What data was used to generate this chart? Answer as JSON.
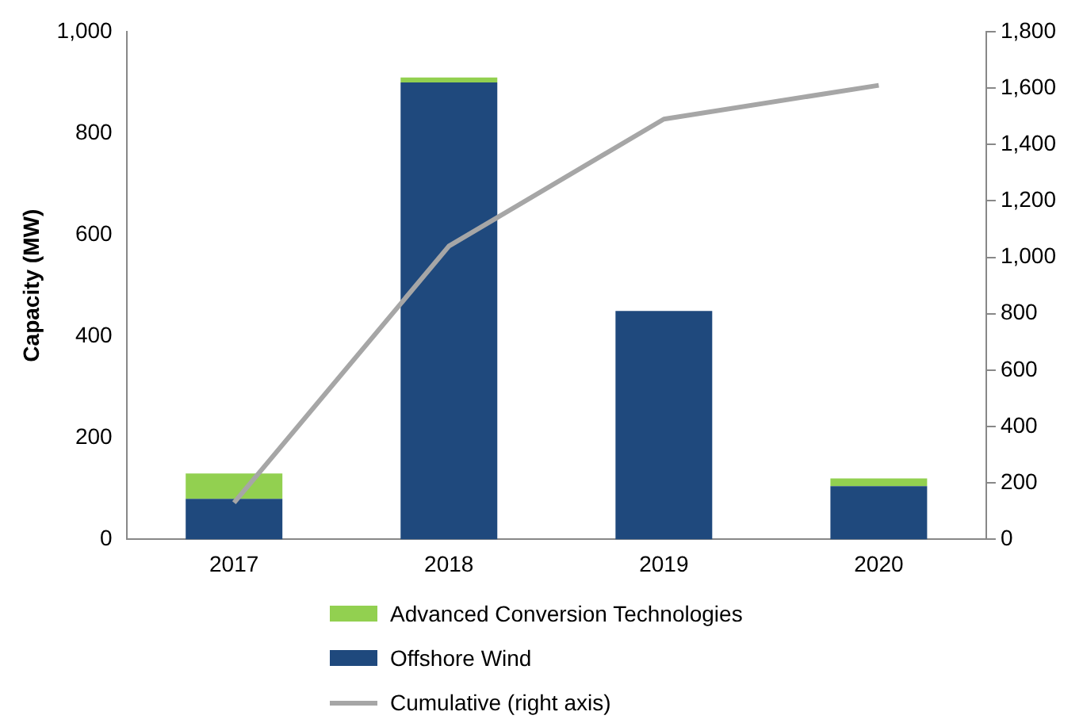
{
  "chart_data": {
    "type": "bar",
    "ylabel": "Capacity (MW)",
    "categories": [
      "2017",
      "2018",
      "2019",
      "2020"
    ],
    "stacked": true,
    "grid": false,
    "legend": "bottom",
    "ylim": [
      0,
      1000
    ],
    "yticks": [
      0,
      {
        "value": 200,
        "label": "200"
      },
      {
        "value": 400,
        "label": "400"
      },
      {
        "value": 600,
        "label": "600"
      },
      {
        "value": 800,
        "label": "800"
      },
      {
        "value": 1000,
        "label": "1,000"
      }
    ],
    "y2lim": [
      0,
      1800
    ],
    "y2ticks": [
      0,
      200,
      400,
      600,
      800,
      {
        "value": 1000,
        "label": "1,000"
      },
      {
        "value": 1200,
        "label": "1,200"
      },
      {
        "value": 1400,
        "label": "1,400"
      },
      {
        "value": 1600,
        "label": "1,600"
      },
      {
        "value": 1800,
        "label": "1,800"
      }
    ],
    "series": [
      {
        "name": "Offshore Wind",
        "color": "#1f497d",
        "values": [
          80,
          900,
          450,
          105
        ]
      },
      {
        "name": "Advanced Conversion Technologies",
        "color": "#92d050",
        "values": [
          50,
          10,
          0,
          15
        ]
      },
      {
        "name": "Cumulative (right axis)",
        "type": "line",
        "axis": "y2",
        "color": "#a6a6a6",
        "values": [
          130,
          1040,
          1490,
          1610
        ]
      }
    ]
  }
}
